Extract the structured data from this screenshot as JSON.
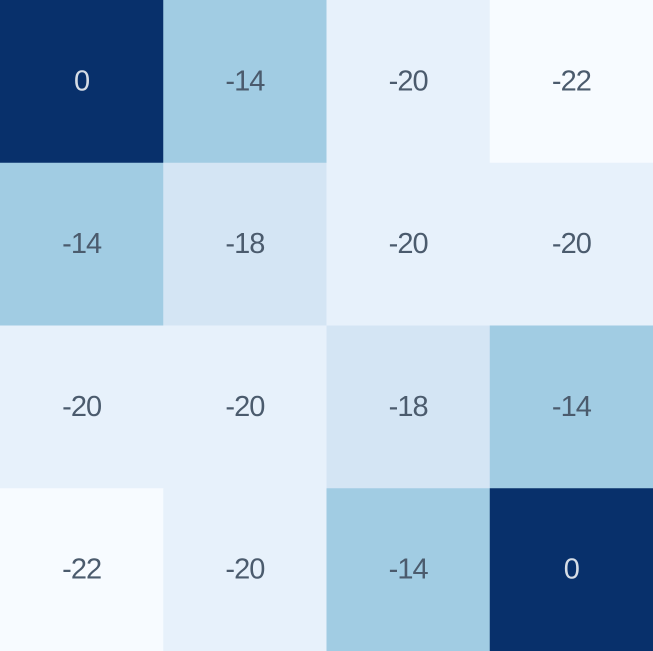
{
  "chart_data": {
    "type": "heatmap",
    "title": "",
    "xlabel": "",
    "ylabel": "",
    "rows": 4,
    "cols": 4,
    "values": [
      [
        0,
        -14,
        -20,
        -22
      ],
      [
        -14,
        -18,
        -20,
        -20
      ],
      [
        -20,
        -20,
        -18,
        -14
      ],
      [
        -22,
        -20,
        -14,
        0
      ]
    ],
    "value_range": [
      -22,
      0
    ],
    "colormap": "Blues",
    "colors": {
      "0": "#08306b",
      "-14": "#a1cce3",
      "-18": "#d4e5f4",
      "-20": "#e7f1fb",
      "-22": "#f7fbff"
    },
    "text_colors": {
      "dark_cell": "#d6dde6",
      "light_cell": "#4b5b6d"
    },
    "grid": false,
    "legend": "none"
  }
}
